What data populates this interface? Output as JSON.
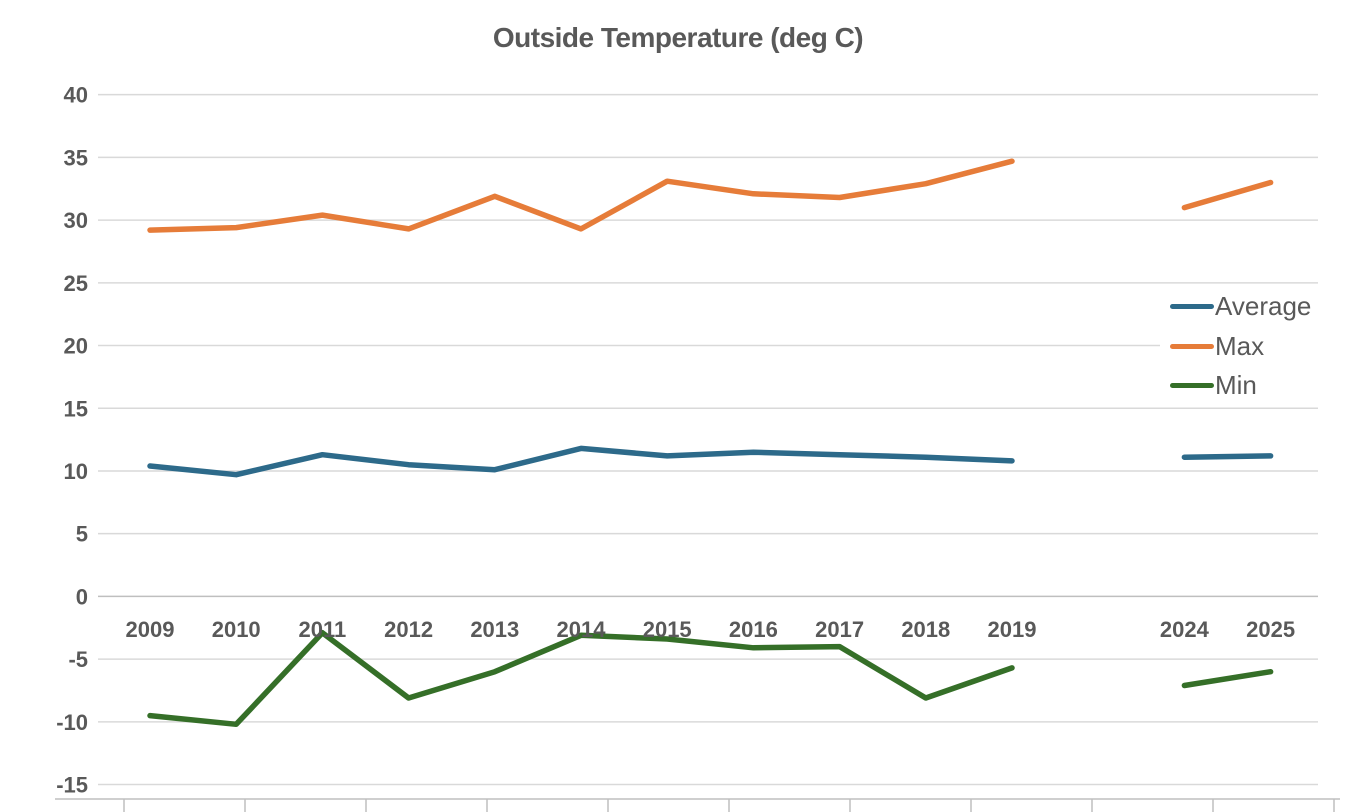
{
  "chart_data": {
    "type": "line",
    "title": "Outside Temperature (deg C)",
    "categories": [
      "2009",
      "2010",
      "2011",
      "2012",
      "2013",
      "2014",
      "2015",
      "2016",
      "2017",
      "2018",
      "2019",
      "",
      "2024",
      "2025"
    ],
    "series": [
      {
        "name": "Average",
        "color": "#2D6A8A",
        "values": [
          10.4,
          9.7,
          11.3,
          10.5,
          10.1,
          11.8,
          11.2,
          11.5,
          11.3,
          11.1,
          10.8,
          null,
          11.1,
          11.2
        ]
      },
      {
        "name": "Max",
        "color": "#E67C39",
        "values": [
          29.2,
          29.4,
          30.4,
          29.3,
          31.9,
          29.3,
          33.1,
          32.1,
          31.8,
          32.9,
          34.7,
          null,
          31.0,
          33.0
        ]
      },
      {
        "name": "Min",
        "color": "#356F28",
        "values": [
          -9.5,
          -10.2,
          -2.9,
          -8.1,
          -6.0,
          -3.1,
          -3.4,
          -4.1,
          -4.0,
          -8.1,
          -5.7,
          null,
          -7.1,
          -6.0
        ]
      }
    ],
    "y_ticks": [
      40,
      35,
      30,
      25,
      20,
      15,
      10,
      5,
      0,
      -5,
      -10,
      -15
    ],
    "ylim": [
      -15,
      40
    ],
    "xlabel": "",
    "ylabel": "",
    "legend_position": "right",
    "grid": "horizontal",
    "note_gap": "no data between 2019 and 2024"
  },
  "styles": {
    "text_color": "#595959",
    "gridline_color": "#D9D9D9",
    "zero_line_color": "#BFBFBF",
    "axis_line_color": "#BFBFBF",
    "background": "#FFFFFF"
  }
}
